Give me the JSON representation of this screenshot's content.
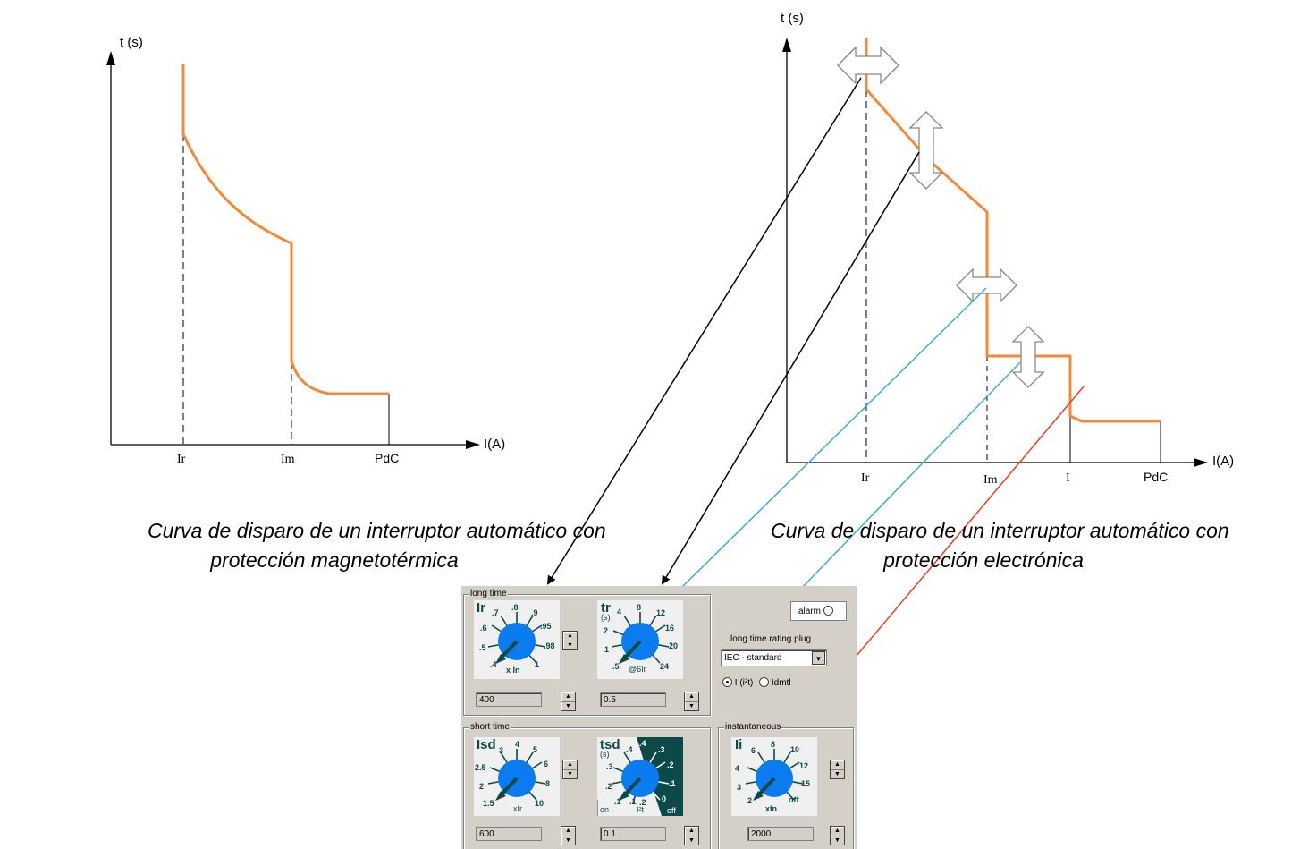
{
  "left_chart": {
    "y_axis_label": "t (s)",
    "x_axis_label": "I(A)",
    "ticks": [
      "Ir",
      "Im",
      "PdC"
    ],
    "caption_line1": "Curva de disparo de un interruptor automático con",
    "caption_line2": "protección magnetotérmica"
  },
  "right_chart": {
    "y_axis_label": "t (s)",
    "x_axis_label": "I(A)",
    "ticks": [
      "Ir",
      "Im",
      "I",
      "PdC"
    ],
    "caption_line1": "Curva de disparo de un interruptor automático con",
    "caption_line2": "protección electrónica"
  },
  "colors": {
    "curve": "#f08a3c",
    "arrow_black": "#000000",
    "arrow_blue": "#41a9e0",
    "arrow_red": "#e8401c",
    "dial_blue": "#0a7cf0",
    "dial_dark": "#0c4a4a"
  },
  "panel": {
    "long_time": {
      "title": "long time",
      "ir": {
        "name": "Ir",
        "marks": [
          ".7",
          ".8",
          ".9",
          ".95",
          ".98",
          "1",
          ".4",
          ".5",
          ".6"
        ],
        "unit": "x In",
        "value": "400"
      },
      "tr": {
        "name": "tr",
        "sub": "(s)",
        "marks": [
          "4",
          "8",
          "12",
          "16",
          "20",
          "24",
          ".5",
          "1",
          "2"
        ],
        "unit": "@6Ir",
        "value": "0.5"
      }
    },
    "alarm_label": "alarm",
    "rating_plug": {
      "label": "long time rating plug",
      "selected": "IEC - standard",
      "options": [
        "I (i²t)",
        "Idmtl"
      ]
    },
    "short_time": {
      "title": "short time",
      "isd": {
        "name": "Isd",
        "marks": [
          "3",
          "4",
          "5",
          "6",
          "8",
          "10",
          "1.5",
          "2",
          "2.5"
        ],
        "unit": "xIr",
        "value": "600"
      },
      "tsd": {
        "name": "tsd",
        "sub": "(s)",
        "marks": [
          ".4",
          ".4",
          ".3",
          ".2",
          ".1",
          "0",
          ".3",
          ".2",
          ".1",
          ".1",
          ".2"
        ],
        "on": "on",
        "i2t": "I²t",
        "off": "off",
        "value": "0.1"
      }
    },
    "instantaneous": {
      "title": "instantaneous",
      "ii": {
        "name": "Ii",
        "marks": [
          "6",
          "8",
          "10",
          "12",
          "15",
          "off",
          "2",
          "3",
          "4"
        ],
        "unit": "xIn",
        "value": "2000"
      }
    }
  }
}
